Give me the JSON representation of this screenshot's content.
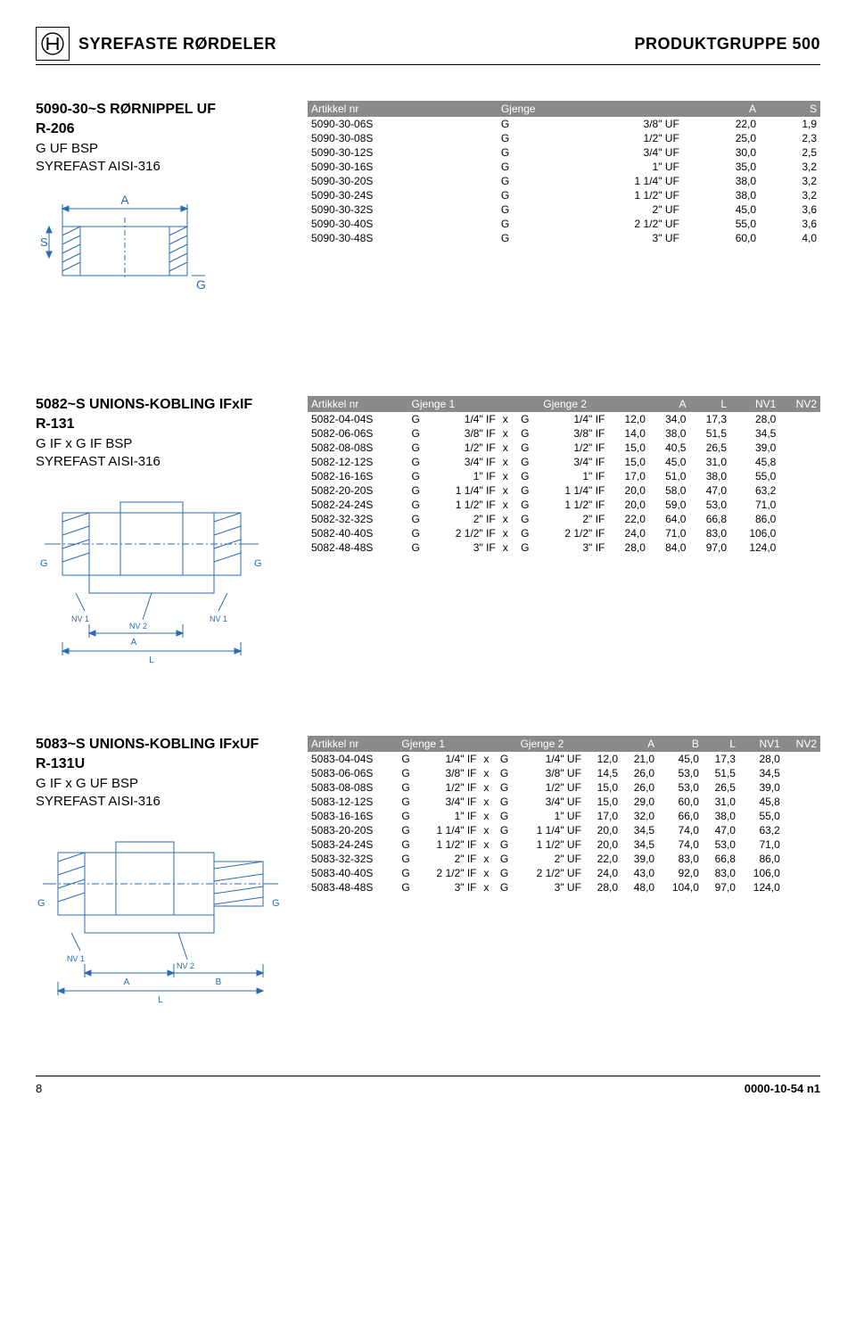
{
  "header": {
    "left_title": "SYREFASTE RØRDELER",
    "right_title": "PRODUKTGRUPPE 500"
  },
  "section1": {
    "title": "5090-30~S RØRNIPPEL UF",
    "code": "R-206",
    "spec1": "G UF BSP",
    "spec2": "SYREFAST AISI-316",
    "table": {
      "columns": [
        "Artikkel nr",
        "Gjenge",
        "A",
        "S"
      ],
      "rows": [
        [
          "5090-30-06S",
          "G",
          "3/8\" UF",
          "22,0",
          "1,9"
        ],
        [
          "5090-30-08S",
          "G",
          "1/2\" UF",
          "25,0",
          "2,3"
        ],
        [
          "5090-30-12S",
          "G",
          "3/4\" UF",
          "30,0",
          "2,5"
        ],
        [
          "5090-30-16S",
          "G",
          "1\" UF",
          "35,0",
          "3,2"
        ],
        [
          "5090-30-20S",
          "G",
          "1 1/4\" UF",
          "38,0",
          "3,2"
        ],
        [
          "5090-30-24S",
          "G",
          "1 1/2\" UF",
          "38,0",
          "3,2"
        ],
        [
          "5090-30-32S",
          "G",
          "2\" UF",
          "45,0",
          "3,6"
        ],
        [
          "5090-30-40S",
          "G",
          "2 1/2\" UF",
          "55,0",
          "3,6"
        ],
        [
          "5090-30-48S",
          "G",
          "3\" UF",
          "60,0",
          "4,0"
        ]
      ]
    }
  },
  "section2": {
    "title": "5082~S UNIONS-KOBLING IFxIF",
    "code": "R-131",
    "spec1": "G IF x G IF BSP",
    "spec2": "SYREFAST AISI-316",
    "table": {
      "columns": [
        "Artikkel nr",
        "Gjenge 1",
        "",
        "Gjenge 2",
        "A",
        "L",
        "NV1",
        "NV2"
      ],
      "rows": [
        [
          "5082-04-04S",
          "G",
          "1/4\" IF",
          "x",
          "G",
          "1/4\" IF",
          "12,0",
          "34,0",
          "17,3",
          "28,0"
        ],
        [
          "5082-06-06S",
          "G",
          "3/8\" IF",
          "x",
          "G",
          "3/8\" IF",
          "14,0",
          "38,0",
          "51,5",
          "34,5"
        ],
        [
          "5082-08-08S",
          "G",
          "1/2\" IF",
          "x",
          "G",
          "1/2\" IF",
          "15,0",
          "40,5",
          "26,5",
          "39,0"
        ],
        [
          "5082-12-12S",
          "G",
          "3/4\" IF",
          "x",
          "G",
          "3/4\" IF",
          "15,0",
          "45,0",
          "31,0",
          "45,8"
        ],
        [
          "5082-16-16S",
          "G",
          "1\" IF",
          "x",
          "G",
          "1\" IF",
          "17,0",
          "51,0",
          "38,0",
          "55,0"
        ],
        [
          "5082-20-20S",
          "G",
          "1 1/4\" IF",
          "x",
          "G",
          "1 1/4\" IF",
          "20,0",
          "58,0",
          "47,0",
          "63,2"
        ],
        [
          "5082-24-24S",
          "G",
          "1 1/2\" IF",
          "x",
          "G",
          "1 1/2\" IF",
          "20,0",
          "59,0",
          "53,0",
          "71,0"
        ],
        [
          "5082-32-32S",
          "G",
          "2\" IF",
          "x",
          "G",
          "2\" IF",
          "22,0",
          "64,0",
          "66,8",
          "86,0"
        ],
        [
          "5082-40-40S",
          "G",
          "2 1/2\" IF",
          "x",
          "G",
          "2 1/2\" IF",
          "24,0",
          "71,0",
          "83,0",
          "106,0"
        ],
        [
          "5082-48-48S",
          "G",
          "3\" IF",
          "x",
          "G",
          "3\" IF",
          "28,0",
          "84,0",
          "97,0",
          "124,0"
        ]
      ]
    }
  },
  "section3": {
    "title": "5083~S UNIONS-KOBLING IFxUF",
    "code": "R-131U",
    "spec1": "G IF x G UF BSP",
    "spec2": "SYREFAST AISI-316",
    "table": {
      "columns": [
        "Artikkel nr",
        "Gjenge 1",
        "",
        "Gjenge 2",
        "A",
        "B",
        "L",
        "NV1",
        "NV2"
      ],
      "rows": [
        [
          "5083-04-04S",
          "G",
          "1/4\" IF",
          "x",
          "G",
          "1/4\" UF",
          "12,0",
          "21,0",
          "45,0",
          "17,3",
          "28,0"
        ],
        [
          "5083-06-06S",
          "G",
          "3/8\" IF",
          "x",
          "G",
          "3/8\" UF",
          "14,5",
          "26,0",
          "53,0",
          "51,5",
          "34,5"
        ],
        [
          "5083-08-08S",
          "G",
          "1/2\" IF",
          "x",
          "G",
          "1/2\" UF",
          "15,0",
          "26,0",
          "53,0",
          "26,5",
          "39,0"
        ],
        [
          "5083-12-12S",
          "G",
          "3/4\" IF",
          "x",
          "G",
          "3/4\" UF",
          "15,0",
          "29,0",
          "60,0",
          "31,0",
          "45,8"
        ],
        [
          "5083-16-16S",
          "G",
          "1\" IF",
          "x",
          "G",
          "1\" UF",
          "17,0",
          "32,0",
          "66,0",
          "38,0",
          "55,0"
        ],
        [
          "5083-20-20S",
          "G",
          "1 1/4\" IF",
          "x",
          "G",
          "1 1/4\" UF",
          "20,0",
          "34,5",
          "74,0",
          "47,0",
          "63,2"
        ],
        [
          "5083-24-24S",
          "G",
          "1 1/2\" IF",
          "x",
          "G",
          "1 1/2\" UF",
          "20,0",
          "34,5",
          "74,0",
          "53,0",
          "71,0"
        ],
        [
          "5083-32-32S",
          "G",
          "2\" IF",
          "x",
          "G",
          "2\" UF",
          "22,0",
          "39,0",
          "83,0",
          "66,8",
          "86,0"
        ],
        [
          "5083-40-40S",
          "G",
          "2 1/2\" IF",
          "x",
          "G",
          "2 1/2\" UF",
          "24,0",
          "43,0",
          "92,0",
          "83,0",
          "106,0"
        ],
        [
          "5083-48-48S",
          "G",
          "3\" IF",
          "x",
          "G",
          "3\" UF",
          "28,0",
          "48,0",
          "104,0",
          "97,0",
          "124,0"
        ]
      ]
    }
  },
  "footer": {
    "page": "8",
    "doc": "0000-10-54 n1"
  },
  "colors": {
    "header_bg": "#888a8c",
    "header_fg": "#ffffff",
    "line": "#000000",
    "diagram_stroke": "#2b6bb2",
    "hatch": "#2b6bb2"
  },
  "labels": {
    "A": "A",
    "S": "S",
    "G": "G",
    "L": "L",
    "B": "B",
    "NV1": "NV 1",
    "NV2": "NV 2"
  }
}
